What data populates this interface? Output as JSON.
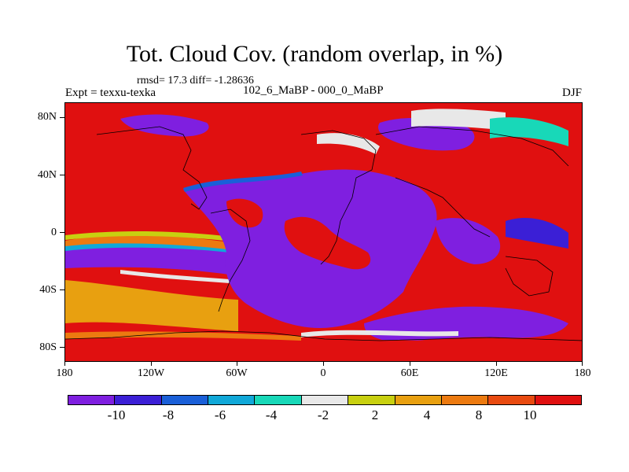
{
  "figure": {
    "title": "Tot. Cloud Cov. (random overlap, in %)",
    "stats": "rmsd= 17.3 diff= -1.28636",
    "experiment": "Expt = texxu-texka",
    "period": "102_6_MaBP - 000_0_MaBP",
    "season": "DJF"
  },
  "map": {
    "lat_labels": [
      "80N",
      "40N",
      "0",
      "40S",
      "80S"
    ],
    "lon_labels": [
      "180",
      "120W",
      "60W",
      "0",
      "60E",
      "120E",
      "180"
    ]
  },
  "colorbar": {
    "colors": [
      "#7f1fe0",
      "#3b1fd6",
      "#1a5fd8",
      "#10a8d8",
      "#18d8b8",
      "#e8e8e8",
      "#c8d010",
      "#e8a010",
      "#ec7a10",
      "#e84a10",
      "#e01010"
    ],
    "labels": [
      "-10",
      "-8",
      "-6",
      "-4",
      "-2",
      "2",
      "4",
      "8",
      "10"
    ]
  }
}
